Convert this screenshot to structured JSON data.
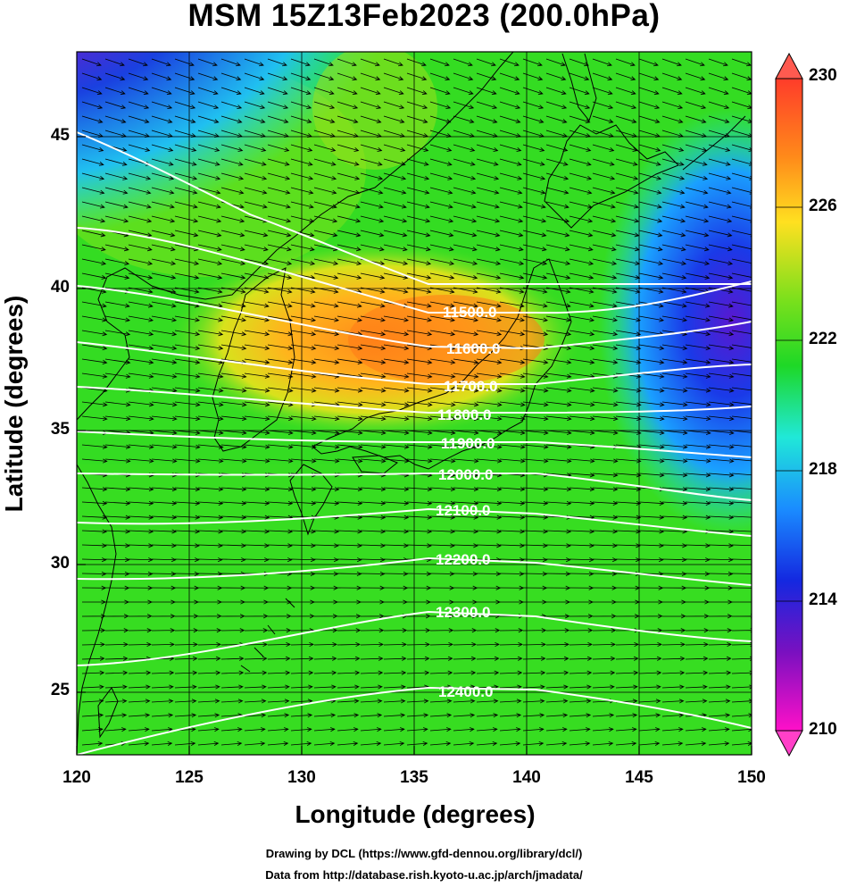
{
  "title": "MSM 15Z13Feb2023 (200.0hPa)",
  "axes": {
    "xlabel": "Longitude (degrees)",
    "ylabel": "Latitude  (degrees)",
    "x_ticks": [
      "120",
      "125",
      "130",
      "135",
      "140",
      "145",
      "150"
    ],
    "y_ticks": [
      "25",
      "30",
      "35",
      "40",
      "45"
    ]
  },
  "colorbar": {
    "ticks": [
      "230",
      "226",
      "222",
      "218",
      "214",
      "210"
    ],
    "colors_top_to_bottom": [
      "#ff3c2a",
      "#ff8a1a",
      "#ffe020",
      "#7ae01c",
      "#1ed826",
      "#20e8d8",
      "#1a8cff",
      "#1428e0",
      "#7a10c0",
      "#ff10c8"
    ]
  },
  "contours": [
    {
      "label": "11500.0"
    },
    {
      "label": "11600.0"
    },
    {
      "label": "11700.0"
    },
    {
      "label": "11800.0"
    },
    {
      "label": "11900.0"
    },
    {
      "label": "12000.0"
    },
    {
      "label": "12100.0"
    },
    {
      "label": "12200.0"
    },
    {
      "label": "12300.0"
    },
    {
      "label": "12400.0"
    }
  ],
  "credits": {
    "line1": "Drawing by DCL (https://www.gfd-dennou.org/library/dcl/)",
    "line2": "Data from http://database.rish.kyoto-u.ac.jp/arch/jmadata/"
  }
}
